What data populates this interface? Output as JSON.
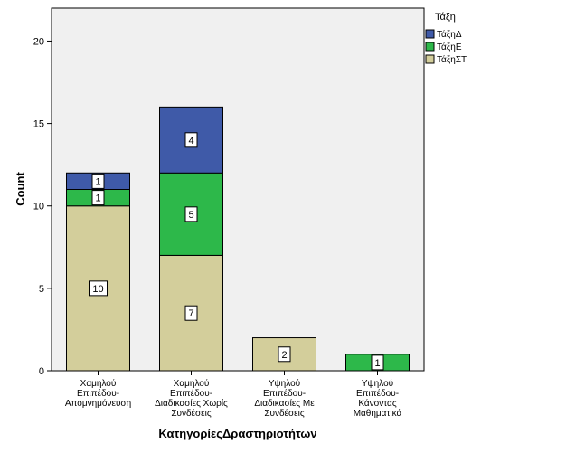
{
  "chart_data": {
    "type": "bar",
    "stacked": true,
    "categories": [
      [
        "Χαμηλού",
        "Επιπέδου-",
        "Απομνημόνευση"
      ],
      [
        "Χαμηλού",
        "Επιπέδου-",
        "Διαδικασίες Χωρίς",
        "Συνδέσεις"
      ],
      [
        "Υψηλού",
        "Επιπέδου-",
        "Διαδικασίες Με",
        "Συνδέσεις"
      ],
      [
        "Υψηλού",
        "Επιπέδου-",
        "Κάνοντας",
        "Μαθηματικά"
      ]
    ],
    "series": [
      {
        "name": "ΤάξηΣΤ",
        "color": "#d3ce9b",
        "values": [
          10,
          7,
          2,
          0
        ]
      },
      {
        "name": "ΤάξηΕ",
        "color": "#2db84a",
        "values": [
          1,
          5,
          0,
          1
        ]
      },
      {
        "name": "ΤάξηΔ",
        "color": "#3f5aa8",
        "values": [
          1,
          4,
          0,
          0
        ]
      }
    ],
    "legend_order": [
      "ΤάξηΔ",
      "ΤάξηΕ",
      "ΤάξηΣΤ"
    ],
    "legend_title": "Τάξη",
    "legend_position": "right",
    "xlabel": "ΚατηγορίεςΔραστηριοτήτων",
    "ylabel": "Count",
    "ylim": [
      0,
      22
    ],
    "yticks": [
      0,
      5,
      10,
      15,
      20
    ],
    "grid": false,
    "plot_background": "#f0f0f0",
    "data_labels": true
  }
}
